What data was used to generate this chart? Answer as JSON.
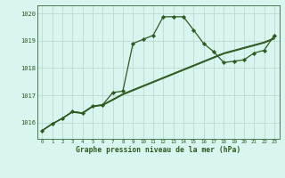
{
  "title": "Graphe pression niveau de la mer (hPa)",
  "bg_color": "#d8f5ef",
  "grid_color": "#c0d8d0",
  "line_color": "#2d5a1e",
  "xlim": [
    -0.5,
    23.5
  ],
  "ylim": [
    1015.4,
    1020.3
  ],
  "yticks": [
    1016,
    1017,
    1018,
    1019,
    1020
  ],
  "xticks": [
    0,
    1,
    2,
    3,
    4,
    5,
    6,
    7,
    8,
    9,
    10,
    11,
    12,
    13,
    14,
    15,
    16,
    17,
    18,
    19,
    20,
    21,
    22,
    23
  ],
  "s1_x": [
    0,
    1,
    2,
    3,
    4,
    5,
    6,
    7,
    8,
    9,
    10,
    11,
    12,
    13,
    14,
    15,
    16,
    17,
    18,
    19,
    20,
    21,
    22,
    23
  ],
  "s1_y": [
    1015.7,
    1015.95,
    1016.15,
    1016.4,
    1016.35,
    1016.6,
    1016.65,
    1017.1,
    1017.15,
    1018.9,
    1019.05,
    1019.2,
    1019.88,
    1019.88,
    1019.88,
    1019.4,
    1018.9,
    1018.6,
    1018.2,
    1018.25,
    1018.3,
    1018.55,
    1018.65,
    1019.2
  ],
  "s2_x": [
    0,
    1,
    2,
    3,
    4,
    5,
    6,
    7,
    8,
    9,
    10,
    11,
    12,
    13,
    14,
    15,
    16,
    17,
    18,
    19,
    20,
    21,
    22,
    23
  ],
  "s2_y": [
    1015.7,
    1015.95,
    1016.15,
    1016.4,
    1016.35,
    1016.6,
    1016.65,
    1016.85,
    1017.05,
    1017.2,
    1017.35,
    1017.5,
    1017.65,
    1017.8,
    1017.95,
    1018.1,
    1018.25,
    1018.4,
    1018.55,
    1018.65,
    1018.75,
    1018.85,
    1018.95,
    1019.1
  ],
  "s3_x": [
    0,
    1,
    2,
    3,
    4,
    5,
    6,
    7,
    8,
    9,
    10,
    11,
    12,
    13,
    14,
    15,
    16,
    17,
    18,
    19,
    20,
    21,
    22,
    23
  ],
  "s3_y": [
    1015.7,
    1015.95,
    1016.15,
    1016.38,
    1016.33,
    1016.58,
    1016.63,
    1016.82,
    1017.02,
    1017.17,
    1017.32,
    1017.47,
    1017.62,
    1017.77,
    1017.92,
    1018.07,
    1018.22,
    1018.37,
    1018.52,
    1018.62,
    1018.72,
    1018.82,
    1018.92,
    1019.07
  ]
}
